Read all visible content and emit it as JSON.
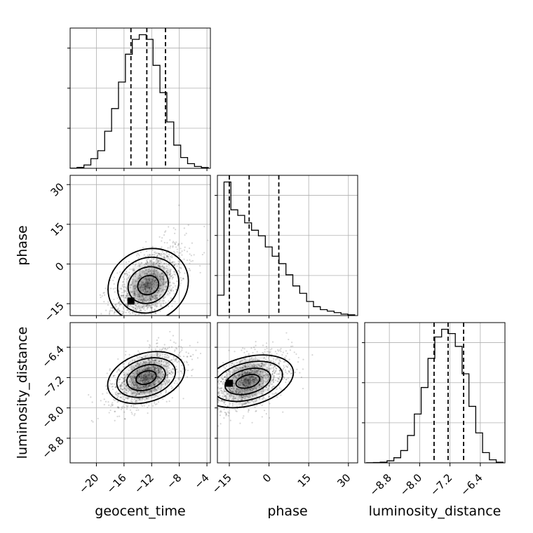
{
  "chart_data": {
    "type": "corner",
    "parameters": [
      "geocent_time",
      "phase",
      "luminosity_distance"
    ],
    "axis_labels": {
      "x": [
        "geocent_time",
        "phase",
        "luminosity_distance"
      ],
      "y": [
        "phase",
        "luminosity_distance"
      ]
    },
    "ranges": {
      "geocent_time": [
        -23.8,
        -3.5
      ],
      "phase": [
        -19.5,
        33.5
      ],
      "luminosity_distance": [
        -9.45,
        -5.75
      ]
    },
    "ticks": {
      "geocent_time": [
        "−20",
        "−16",
        "−12",
        "−8",
        "−4"
      ],
      "phase": [
        "−15",
        "0",
        "15",
        "30"
      ],
      "luminosity_distance": [
        "−8.8",
        "−8.0",
        "−7.2",
        "−6.4"
      ]
    },
    "tick_values": {
      "geocent_time": [
        -20,
        -16,
        -12,
        -8,
        -4
      ],
      "phase": [
        -15,
        0,
        15,
        30
      ],
      "luminosity_distance": [
        -8.8,
        -8.0,
        -7.2,
        -6.4
      ]
    },
    "quantiles": {
      "geocent_time": [
        -15.0,
        -12.7,
        -10.0
      ],
      "phase": [
        -15.0,
        -7.5,
        3.7
      ],
      "luminosity_distance": [
        -7.62,
        -7.25,
        -6.84
      ]
    },
    "histograms": {
      "geocent_time": {
        "bins": [
          -23.8,
          -22.8,
          -21.8,
          -20.8,
          -19.8,
          -18.8,
          -17.8,
          -16.8,
          -15.8,
          -14.8,
          -13.8,
          -12.8,
          -11.8,
          -10.8,
          -9.8,
          -8.8,
          -7.8,
          -6.8,
          -5.8,
          -4.8,
          -3.8
        ],
        "counts": [
          1,
          5,
          18,
          52,
          95,
          200,
          322,
          465,
          615,
          695,
          720,
          695,
          555,
          408,
          250,
          125,
          58,
          25,
          10,
          4
        ]
      },
      "phase": {
        "bins": [
          -19.5,
          -17.0,
          -14.4,
          -11.8,
          -9.2,
          -6.6,
          -4.0,
          -1.4,
          1.2,
          3.8,
          6.4,
          9.0,
          11.6,
          14.2,
          16.8,
          19.4,
          22.0,
          24.6,
          27.2,
          29.8,
          32.4
        ],
        "counts": [
          55,
          360,
          285,
          270,
          250,
          230,
          215,
          185,
          160,
          140,
          110,
          80,
          60,
          38,
          24,
          16,
          12,
          8,
          4,
          2
        ]
      },
      "luminosity_distance": {
        "bins": [
          -9.4,
          -9.22,
          -9.04,
          -8.86,
          -8.68,
          -8.5,
          -8.32,
          -8.14,
          -7.96,
          -7.78,
          -7.6,
          -7.42,
          -7.24,
          -7.06,
          -6.88,
          -6.7,
          -6.52,
          -6.34,
          -6.16,
          -5.98,
          -5.8
        ],
        "counts": [
          1,
          2,
          4,
          12,
          30,
          72,
          160,
          285,
          440,
          610,
          735,
          780,
          755,
          680,
          520,
          330,
          175,
          60,
          18,
          4
        ]
      }
    },
    "joint": {
      "phase_vs_geocent_time": {
        "mean": [
          -12.5,
          -8.0
        ],
        "sd": [
          2.7,
          8.0
        ],
        "corr": 0.55,
        "peak": [
          -15.0,
          -14.0
        ]
      },
      "luminosity_distance_vs_geocent_time": {
        "mean": [
          -12.8,
          -7.2
        ],
        "sd": [
          2.6,
          0.38
        ],
        "corr": 0.5
      },
      "luminosity_distance_vs_phase": {
        "mean": [
          -8.0,
          -7.3
        ],
        "sd": [
          8.0,
          0.38
        ],
        "corr": 0.5,
        "peak": [
          -15.0,
          -7.35
        ]
      }
    },
    "grid": true
  }
}
